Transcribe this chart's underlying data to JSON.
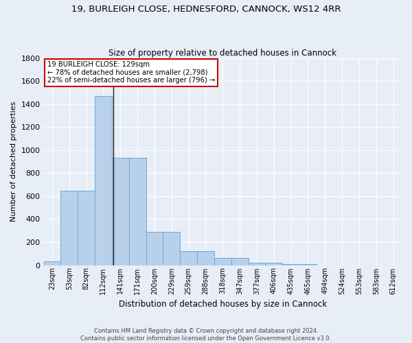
{
  "title1": "19, BURLEIGH CLOSE, HEDNESFORD, CANNOCK, WS12 4RR",
  "title2": "Size of property relative to detached houses in Cannock",
  "xlabel": "Distribution of detached houses by size in Cannock",
  "ylabel": "Number of detached properties",
  "footnote1": "Contains HM Land Registry data © Crown copyright and database right 2024.",
  "footnote2": "Contains public sector information licensed under the Open Government Licence v3.0.",
  "bar_labels": [
    "23sqm",
    "53sqm",
    "82sqm",
    "112sqm",
    "141sqm",
    "171sqm",
    "200sqm",
    "229sqm",
    "259sqm",
    "288sqm",
    "318sqm",
    "347sqm",
    "377sqm",
    "406sqm",
    "435sqm",
    "465sqm",
    "494sqm",
    "524sqm",
    "553sqm",
    "583sqm",
    "612sqm"
  ],
  "bar_values": [
    35,
    650,
    650,
    1470,
    935,
    935,
    290,
    290,
    125,
    125,
    60,
    60,
    20,
    20,
    10,
    10,
    0,
    0,
    0,
    0,
    0
  ],
  "bar_color": "#b8d0ea",
  "bar_edge_color": "#6aaad4",
  "vline_color": "#1a1a1a",
  "annotation_box_edgecolor": "#cc0000",
  "bg_color": "#e8eef8",
  "grid_color": "#ffffff",
  "ylim": [
    0,
    1800
  ],
  "yticks": [
    0,
    200,
    400,
    600,
    800,
    1000,
    1200,
    1400,
    1600,
    1800
  ],
  "property_label": "19 BURLEIGH CLOSE: 129sqm",
  "pct_smaller": 78,
  "n_smaller": 2798,
  "pct_larger_semi": 22,
  "n_larger_semi": 796,
  "vline_idx_lo": 3,
  "vline_sqm_lo": 112,
  "vline_sqm_hi": 141,
  "property_sqm": 129
}
